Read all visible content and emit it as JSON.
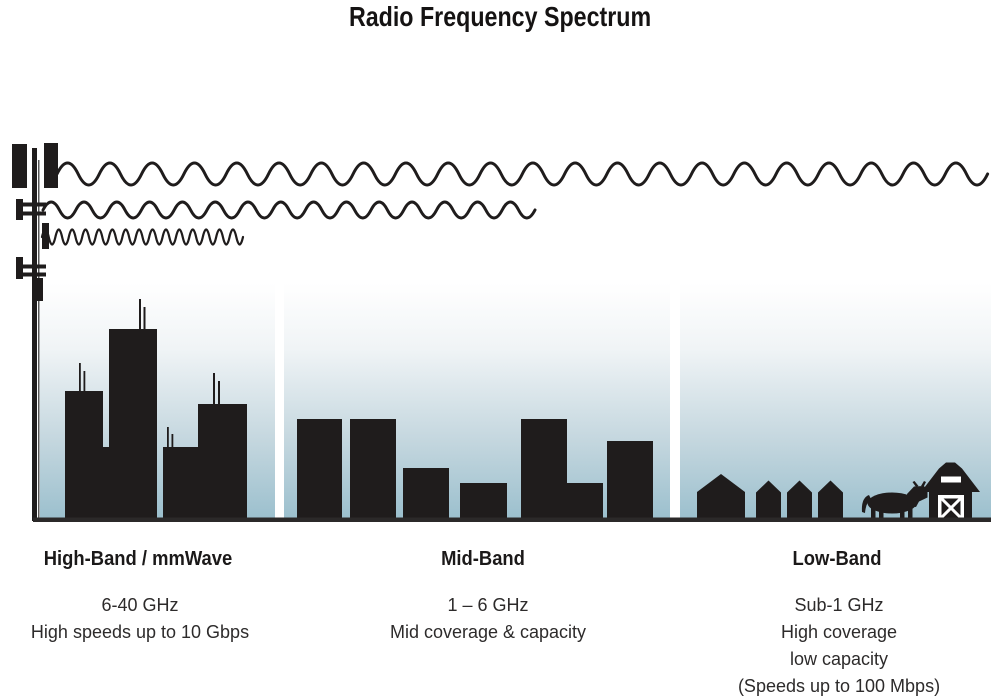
{
  "title": "Radio Frequency Spectrum",
  "colors": {
    "silhouette": "#1f1c1c",
    "sky_gradient_top": "#ffffff",
    "sky_gradient_bottom": "#9cc0ce",
    "ground_line": "#2b2929",
    "heading_text": "#1b1919",
    "body_text": "#2d2b2b"
  },
  "icons": {
    "tower": "cell-tower",
    "wave_long": "long-wavelength-wave",
    "wave_medium": "medium-wavelength-wave",
    "wave_short": "short-wavelength-wave",
    "high_band_scene": "city-skyline-with-antennas",
    "mid_band_scene": "town-buildings",
    "low_band_scene": "houses-cow-and-barn"
  },
  "sections": [
    {
      "id": "high-band",
      "heading": "High-Band / mmWave",
      "lines": [
        "6-40 GHz",
        "High speeds up to 10 Gbps"
      ]
    },
    {
      "id": "mid-band",
      "heading": "Mid-Band",
      "lines": [
        "1 – 6 GHz",
        "Mid coverage & capacity"
      ]
    },
    {
      "id": "low-band",
      "heading": "Low-Band",
      "lines": [
        "Sub-1 GHz",
        "High coverage",
        "low capacity",
        "(Speeds up to 100 Mbps)"
      ]
    }
  ]
}
